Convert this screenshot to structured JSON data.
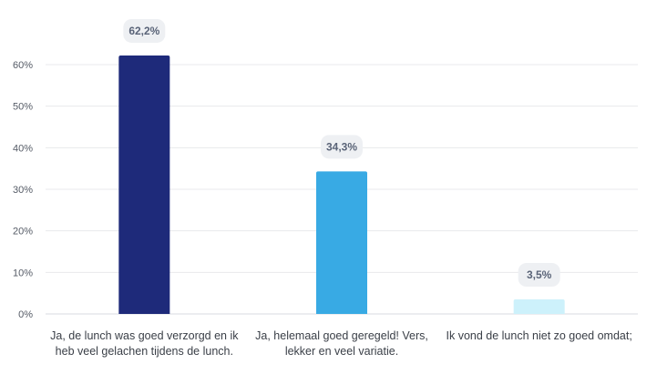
{
  "chart_data": {
    "type": "bar",
    "categories": [
      "Ja, de lunch was goed verzorgd en ik heb veel gelachen tijdens de lunch.",
      "Ja, helemaal goed geregeld! Vers, lekker en veel variatie.",
      "Ik vond de lunch niet zo goed omdat;"
    ],
    "values": [
      62.2,
      34.3,
      3.5
    ],
    "data_labels": [
      "62,2%",
      "34,3%",
      "3,5%"
    ],
    "bar_colors": [
      "#1e2a7a",
      "#38aae4",
      "#cdf1fb"
    ],
    "title": "",
    "xlabel": "",
    "ylabel": "",
    "ylim": [
      0,
      60
    ],
    "yticks": [
      0,
      10,
      20,
      30,
      40,
      50,
      60
    ],
    "ytick_labels": [
      "0%",
      "10%",
      "20%",
      "30%",
      "40%",
      "50%",
      "60%"
    ],
    "grid": true,
    "legend": "none"
  }
}
